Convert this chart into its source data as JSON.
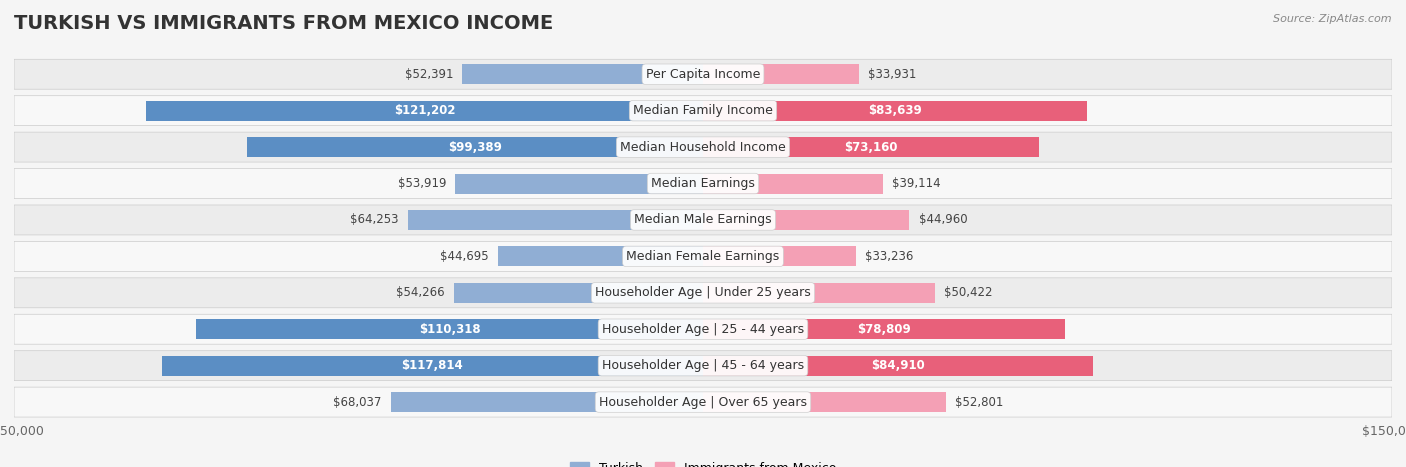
{
  "title": "TURKISH VS IMMIGRANTS FROM MEXICO INCOME",
  "source": "Source: ZipAtlas.com",
  "categories": [
    "Per Capita Income",
    "Median Family Income",
    "Median Household Income",
    "Median Earnings",
    "Median Male Earnings",
    "Median Female Earnings",
    "Householder Age | Under 25 years",
    "Householder Age | 25 - 44 years",
    "Householder Age | 45 - 64 years",
    "Householder Age | Over 65 years"
  ],
  "turkish_values": [
    52391,
    121202,
    99389,
    53919,
    64253,
    44695,
    54266,
    110318,
    117814,
    68037
  ],
  "mexico_values": [
    33931,
    83639,
    73160,
    39114,
    44960,
    33236,
    50422,
    78809,
    84910,
    52801
  ],
  "turkish_color": "#90aed4",
  "turkey_highlight_color": "#5b8ec4",
  "mexico_color": "#f4a0b5",
  "mexico_highlight_color": "#e8607a",
  "max_value": 150000,
  "background_color": "#f5f5f5",
  "row_bg_color": "#ffffff",
  "row_alt_bg_color": "#f0f0f0",
  "title_fontsize": 14,
  "label_fontsize": 9,
  "value_fontsize": 8.5,
  "legend_fontsize": 9,
  "turkish_highlight_rows": [
    1,
    2,
    7,
    8
  ],
  "mexico_highlight_rows": [
    1,
    2,
    7,
    8
  ]
}
